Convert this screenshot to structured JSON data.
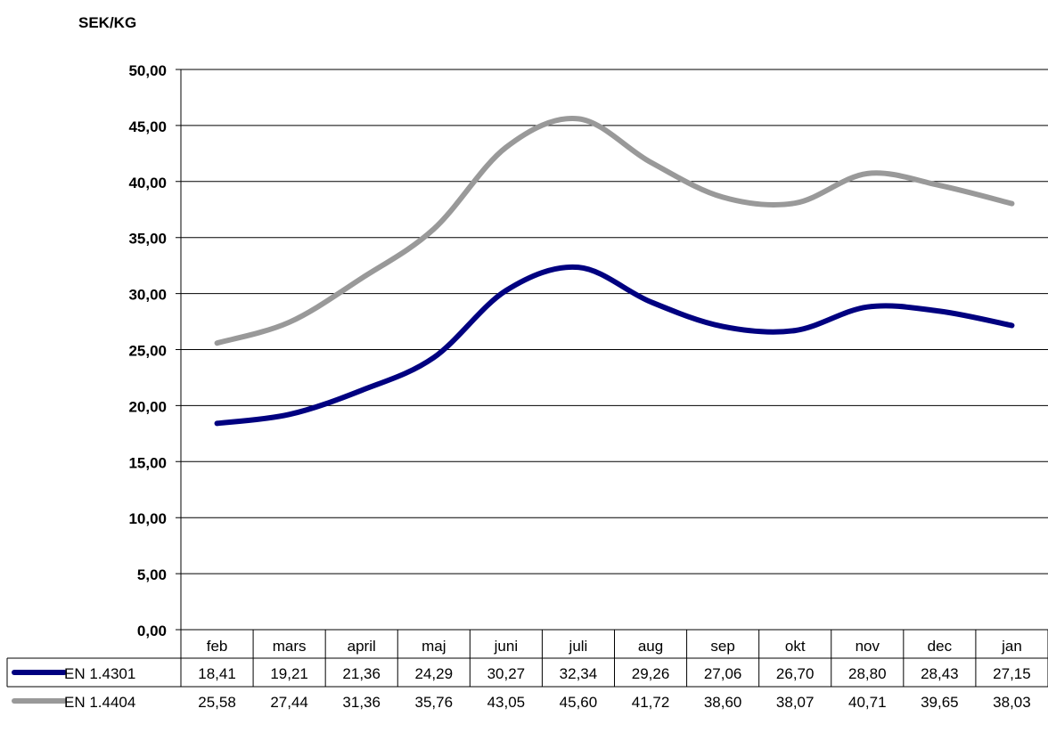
{
  "chart_data": {
    "type": "line",
    "title": "",
    "ylabel": "SEK/KG",
    "xlabel": "",
    "categories": [
      "feb",
      "mars",
      "april",
      "maj",
      "juni",
      "juli",
      "aug",
      "sep",
      "okt",
      "nov",
      "dec",
      "jan"
    ],
    "ylim": [
      0,
      50
    ],
    "y_ticks": [
      0,
      5,
      10,
      15,
      20,
      25,
      30,
      35,
      40,
      45,
      50
    ],
    "y_tick_labels": [
      "0,00",
      "5,00",
      "10,00",
      "15,00",
      "20,00",
      "25,00",
      "30,00",
      "35,00",
      "40,00",
      "45,00",
      "50,00"
    ],
    "grid": true,
    "legend": "data-table",
    "series": [
      {
        "name": "EN 1.4301",
        "color": "#000080",
        "values": [
          18.41,
          19.21,
          21.36,
          24.29,
          30.27,
          32.34,
          29.26,
          27.06,
          26.7,
          28.8,
          28.43,
          27.15
        ],
        "labels": [
          "18,41",
          "19,21",
          "21,36",
          "24,29",
          "30,27",
          "32,34",
          "29,26",
          "27,06",
          "26,70",
          "28,80",
          "28,43",
          "27,15"
        ]
      },
      {
        "name": "EN 1.4404",
        "color": "#999999",
        "values": [
          25.58,
          27.44,
          31.36,
          35.76,
          43.05,
          45.6,
          41.72,
          38.6,
          38.07,
          40.71,
          39.65,
          38.03
        ],
        "labels": [
          "25,58",
          "27,44",
          "31,36",
          "35,76",
          "43,05",
          "45,60",
          "41,72",
          "38,60",
          "38,07",
          "40,71",
          "39,65",
          "38,03"
        ]
      }
    ]
  }
}
